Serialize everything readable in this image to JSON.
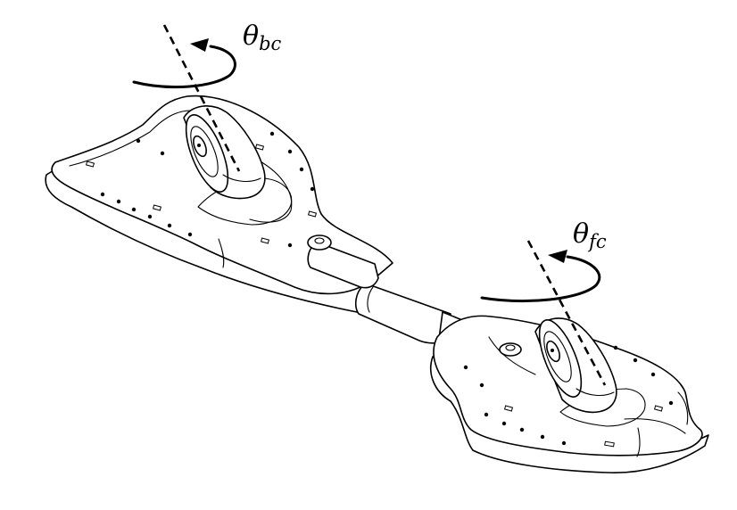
{
  "labels": {
    "back_caster": {
      "symbol": "θ",
      "subscript": "bc"
    },
    "front_caster": {
      "symbol": "θ",
      "subscript": "fc"
    }
  },
  "colors": {
    "line": "#000000",
    "background": "#ffffff"
  }
}
